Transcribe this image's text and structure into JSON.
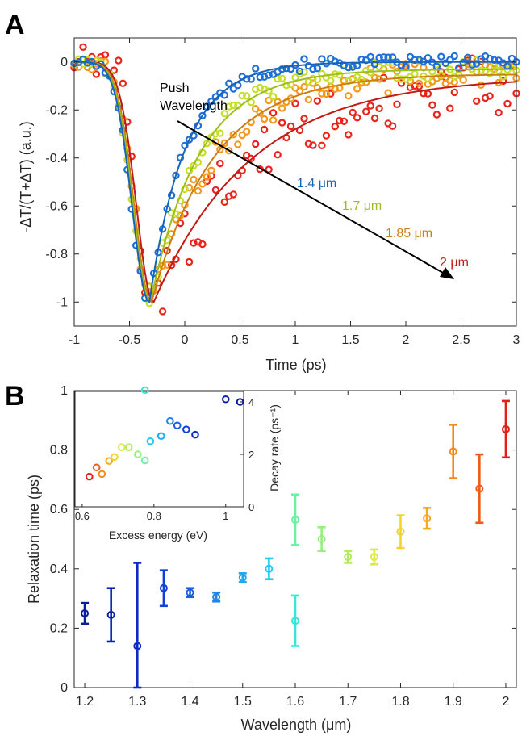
{
  "panels": {
    "a_letter": "A",
    "b_letter": "B"
  },
  "chart_data": [
    {
      "id": "A",
      "type": "scatter",
      "xlabel": "Time (ps)",
      "ylabel": "-ΔT/(T+ΔT) (a.u.)",
      "xlim": [
        -1,
        3
      ],
      "ylim": [
        -1.1,
        0.1
      ],
      "xticks": [
        -1,
        -0.5,
        0,
        0.5,
        1,
        1.5,
        2,
        2.5,
        3
      ],
      "yticks": [
        0,
        -0.2,
        -0.4,
        -0.6,
        -0.8,
        -1
      ],
      "annotation": {
        "line1": "Push",
        "line2": "Wavelength"
      },
      "series": [
        {
          "name": "1.4 μm",
          "color": "#1f6fd6",
          "onset": -0.32,
          "rise": 0.22,
          "tau": 0.32,
          "tail": 0.0,
          "noise": 0.025
        },
        {
          "name": "1.7 μm",
          "color": "#c5e02a",
          "onset": -0.31,
          "rise": 0.22,
          "tau": 0.44,
          "tail": -0.03,
          "noise": 0.04
        },
        {
          "name": "1.85 μm",
          "color": "#f39a1d",
          "onset": -0.3,
          "rise": 0.22,
          "tau": 0.56,
          "tail": -0.05,
          "noise": 0.06
        },
        {
          "name": "2 μm",
          "color": "#e8241c",
          "onset": -0.28,
          "rise": 0.22,
          "tau": 0.88,
          "tail": -0.06,
          "noise": 0.13
        }
      ],
      "fit_colors": [
        "#1764b8",
        "#9fbe1e",
        "#cc7e12",
        "#c21a14"
      ]
    },
    {
      "id": "B",
      "type": "scatter",
      "xlabel": "Wavelength (μm)",
      "ylabel": "Relaxation time (ps)",
      "xlim": [
        1.18,
        2.02
      ],
      "ylim": [
        0,
        1
      ],
      "xticks": [
        1.2,
        1.3,
        1.4,
        1.5,
        1.6,
        1.7,
        1.8,
        1.9,
        2
      ],
      "yticks": [
        0,
        0.2,
        0.4,
        0.6,
        0.8,
        1
      ],
      "points": [
        {
          "x": 1.2,
          "y": 0.25,
          "err": 0.035,
          "color": "#0a1e96"
        },
        {
          "x": 1.25,
          "y": 0.245,
          "err": 0.09,
          "color": "#0a23a8"
        },
        {
          "x": 1.3,
          "y": 0.14,
          "err": 0.28,
          "color": "#0a2cc4"
        },
        {
          "x": 1.35,
          "y": 0.335,
          "err": 0.06,
          "color": "#1040d6"
        },
        {
          "x": 1.4,
          "y": 0.32,
          "err": 0.015,
          "color": "#1a5fdc"
        },
        {
          "x": 1.45,
          "y": 0.305,
          "err": 0.015,
          "color": "#1d86e6"
        },
        {
          "x": 1.5,
          "y": 0.37,
          "err": 0.015,
          "color": "#1ea8ee"
        },
        {
          "x": 1.55,
          "y": 0.4,
          "err": 0.035,
          "color": "#22c9f2"
        },
        {
          "x": 1.6,
          "y": 0.225,
          "err": 0.085,
          "color": "#39e6d6"
        },
        {
          "x": 1.6,
          "y": 0.565,
          "err": 0.085,
          "color": "#6ef0a2"
        },
        {
          "x": 1.65,
          "y": 0.5,
          "err": 0.04,
          "color": "#97ef7c"
        },
        {
          "x": 1.7,
          "y": 0.44,
          "err": 0.02,
          "color": "#b5ea5e"
        },
        {
          "x": 1.75,
          "y": 0.44,
          "err": 0.025,
          "color": "#dde84a"
        },
        {
          "x": 1.8,
          "y": 0.525,
          "err": 0.055,
          "color": "#f5d42a"
        },
        {
          "x": 1.85,
          "y": 0.57,
          "err": 0.035,
          "color": "#f6a81e"
        },
        {
          "x": 1.9,
          "y": 0.795,
          "err": 0.09,
          "color": "#f48a1a"
        },
        {
          "x": 1.95,
          "y": 0.67,
          "err": 0.115,
          "color": "#ee5a18"
        },
        {
          "x": 2.0,
          "y": 0.87,
          "err": 0.095,
          "color": "#e21f18"
        }
      ],
      "inset": {
        "xlabel": "Excess energy (eV)",
        "ylabel": "Decay rate (ps⁻¹)",
        "xlim": [
          0.58,
          1.05
        ],
        "ylim": [
          0,
          4.4
        ],
        "xticks": [
          0.6,
          0.8,
          1
        ],
        "yticks": [
          0,
          2,
          4
        ],
        "points": [
          {
            "x": 0.62,
            "y": 1.15,
            "color": "#e21f18"
          },
          {
            "x": 0.64,
            "y": 1.5,
            "color": "#ee5a18"
          },
          {
            "x": 0.655,
            "y": 1.25,
            "color": "#f48a1a"
          },
          {
            "x": 0.675,
            "y": 1.75,
            "color": "#f6a81e"
          },
          {
            "x": 0.69,
            "y": 1.9,
            "color": "#f5d42a"
          },
          {
            "x": 0.71,
            "y": 2.27,
            "color": "#dde84a"
          },
          {
            "x": 0.73,
            "y": 2.27,
            "color": "#b5ea5e"
          },
          {
            "x": 0.755,
            "y": 2.0,
            "color": "#97ef7c"
          },
          {
            "x": 0.775,
            "y": 1.77,
            "color": "#6ef0a2"
          },
          {
            "x": 0.775,
            "y": 4.45,
            "color": "#39e6d6"
          },
          {
            "x": 0.79,
            "y": 2.5,
            "color": "#22c9f2"
          },
          {
            "x": 0.82,
            "y": 2.7,
            "color": "#1ea8ee"
          },
          {
            "x": 0.845,
            "y": 3.27,
            "color": "#1d86e6"
          },
          {
            "x": 0.865,
            "y": 3.1,
            "color": "#1a5fdc"
          },
          {
            "x": 0.89,
            "y": 2.95,
            "color": "#1040d6"
          },
          {
            "x": 0.915,
            "y": 2.75,
            "color": "#0a2cc4"
          },
          {
            "x": 1.0,
            "y": 4.1,
            "color": "#0a23a8"
          },
          {
            "x": 1.04,
            "y": 4.0,
            "color": "#0a1e96"
          }
        ]
      }
    }
  ]
}
